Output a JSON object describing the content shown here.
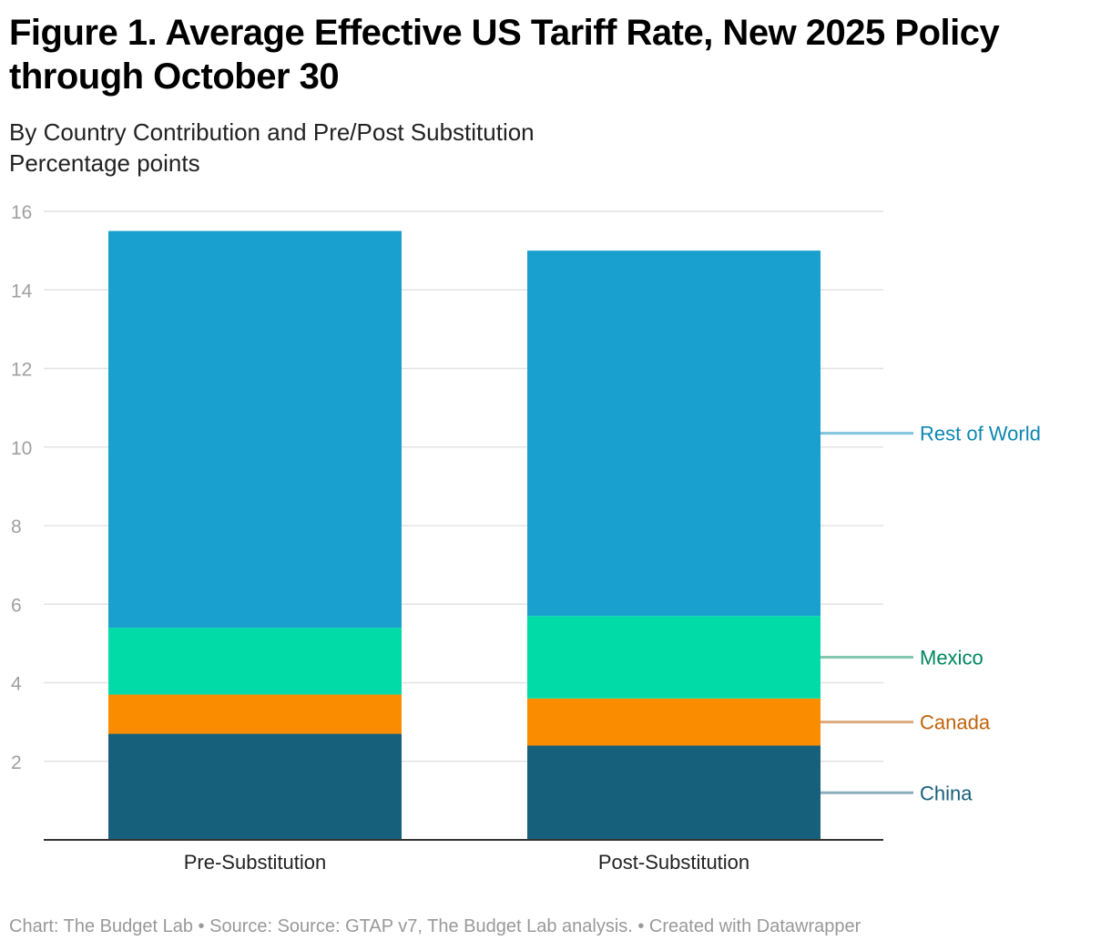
{
  "chart_data": {
    "type": "bar",
    "stacked": true,
    "title": "Figure 1. Average Effective US Tariff Rate, New 2025 Policy through October 30",
    "subtitle": "By Country Contribution and Pre/Post Substitution",
    "ylabel": "Percentage points",
    "xlabel": "",
    "categories": [
      "Pre-Substitution",
      "Post-Substitution"
    ],
    "series": [
      {
        "name": "China",
        "values": [
          2.7,
          2.4
        ],
        "color": "#17607c",
        "label_color": "#17607c",
        "line_color": "#8eaebd"
      },
      {
        "name": "Canada",
        "values": [
          1.0,
          1.2
        ],
        "color": "#fa8c00",
        "label_color": "#c0630a",
        "line_color": "#dca97e"
      },
      {
        "name": "Mexico",
        "values": [
          1.7,
          2.1
        ],
        "color": "#00dba8",
        "label_color": "#00875f",
        "line_color": "#84c8b0"
      },
      {
        "name": "Rest of World",
        "values": [
          10.1,
          9.3
        ],
        "color": "#1aa0ce",
        "label_color": "#0e87b3",
        "line_color": "#7ec2dc"
      }
    ],
    "ylim": [
      0,
      16
    ],
    "yticks": [
      2,
      4,
      6,
      8,
      10,
      12,
      14,
      16
    ],
    "grid": true,
    "legend": "right, direct labels"
  },
  "footer": "Chart: The Budget Lab • Source: Source: GTAP v7, The Budget Lab analysis. • Created with Datawrapper"
}
